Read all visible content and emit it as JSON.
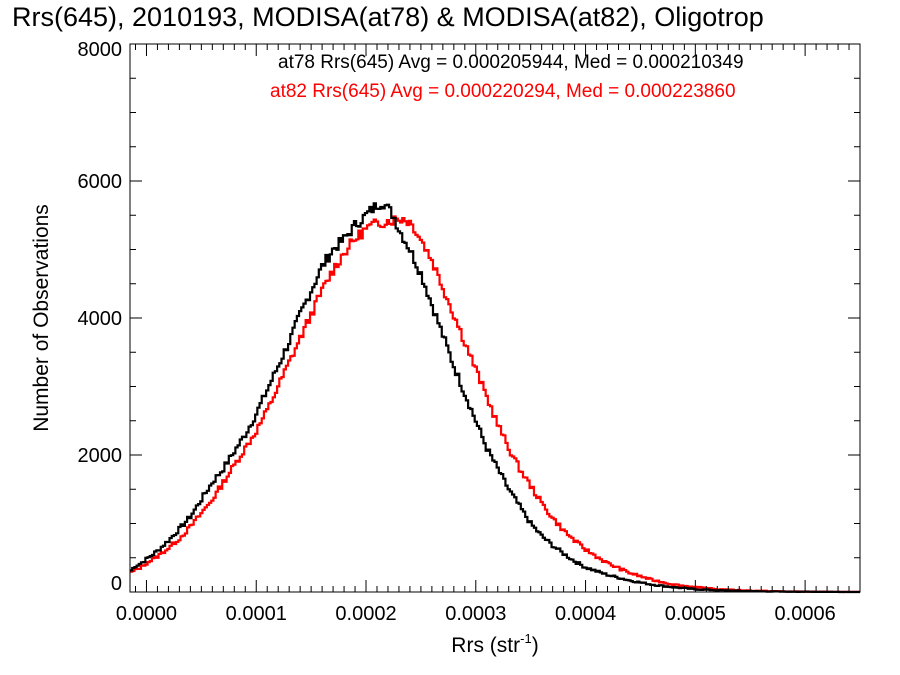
{
  "chart_data": {
    "type": "histogram",
    "title": "Rrs(645), 2010193, MODISA(at78) & MODISA(at82), Oligotrop",
    "xlabel": "Rrs (str",
    "xlabel_sup": "-1",
    "xlabel_close": ")",
    "ylabel": "Number of Observations",
    "xlim": [
      -1.5e-05,
      0.00065
    ],
    "ylim": [
      0,
      8000
    ],
    "xticks": [
      0.0,
      0.0001,
      0.0002,
      0.0003,
      0.0004,
      0.0005,
      0.0006
    ],
    "xtick_labels": [
      "0.0000",
      "0.0001",
      "0.0002",
      "0.0003",
      "0.0004",
      "0.0005",
      "0.0006"
    ],
    "yticks": [
      0,
      2000,
      4000,
      6000,
      8000
    ],
    "ytick_labels": [
      "0",
      "2000",
      "4000",
      "6000",
      "8000"
    ],
    "bin_width": 2e-06,
    "grid": false,
    "annotations": [
      {
        "text": "at78 Rrs(645) Avg = 0.000205944, Med = 0.000210349",
        "color": "#000000"
      },
      {
        "text": "at82 Rrs(645) Avg = 0.000220294, Med = 0.000223860",
        "color": "#ff0000"
      }
    ],
    "series": [
      {
        "color": "#000000",
        "x": [
          -1.5e-05,
          -1e-05,
          -5e-06,
          0.0,
          1e-05,
          2e-05,
          3e-05,
          4e-05,
          5e-05,
          6e-05,
          7e-05,
          8e-05,
          9e-05,
          0.0001,
          0.00011,
          0.00012,
          0.00013,
          0.00014,
          0.00015,
          0.00016,
          0.00017,
          0.00018,
          0.00019,
          0.0002,
          0.00021,
          0.000215,
          0.00022,
          0.000225,
          0.00023,
          0.00024,
          0.00025,
          0.00026,
          0.00027,
          0.00028,
          0.00029,
          0.0003,
          0.00031,
          0.00032,
          0.00033,
          0.00034,
          0.00035,
          0.00036,
          0.00037,
          0.00038,
          0.00039,
          0.0004,
          0.00042,
          0.00044,
          0.00046,
          0.00048,
          0.0005,
          0.00052,
          0.00055,
          0.00058,
          0.00062,
          0.00065
        ],
        "y": [
          300,
          380,
          420,
          480,
          600,
          750,
          920,
          1100,
          1350,
          1600,
          1800,
          2050,
          2300,
          2600,
          2950,
          3300,
          3650,
          4050,
          4400,
          4750,
          5000,
          5150,
          5350,
          5500,
          5650,
          5700,
          5600,
          5500,
          5300,
          5000,
          4650,
          4200,
          3750,
          3300,
          2900,
          2500,
          2100,
          1800,
          1500,
          1250,
          1000,
          820,
          680,
          560,
          450,
          360,
          250,
          170,
          110,
          70,
          40,
          25,
          12,
          5,
          2,
          0
        ]
      },
      {
        "color": "#ff0000",
        "x": [
          -1.5e-05,
          -1e-05,
          -5e-06,
          0.0,
          1e-05,
          2e-05,
          3e-05,
          4e-05,
          5e-05,
          6e-05,
          7e-05,
          8e-05,
          9e-05,
          0.0001,
          0.00011,
          0.00012,
          0.00013,
          0.00014,
          0.00015,
          0.00016,
          0.00017,
          0.00018,
          0.00019,
          0.0002,
          0.00021,
          0.00022,
          0.00023,
          0.000235,
          0.00024,
          0.000245,
          0.00025,
          0.00026,
          0.00027,
          0.00028,
          0.00029,
          0.0003,
          0.00031,
          0.00032,
          0.00033,
          0.00034,
          0.00035,
          0.00036,
          0.00037,
          0.00038,
          0.00039,
          0.0004,
          0.00042,
          0.00044,
          0.00046,
          0.00048,
          0.0005,
          0.00052,
          0.00055,
          0.00058,
          0.00062,
          0.00065
        ],
        "y": [
          280,
          320,
          360,
          420,
          520,
          640,
          780,
          950,
          1150,
          1350,
          1600,
          1850,
          2100,
          2350,
          2650,
          3000,
          3350,
          3700,
          4050,
          4400,
          4700,
          4950,
          5150,
          5300,
          5380,
          5420,
          5450,
          5450,
          5400,
          5300,
          5150,
          4850,
          4450,
          4050,
          3650,
          3250,
          2850,
          2450,
          2100,
          1800,
          1550,
          1300,
          1080,
          900,
          750,
          620,
          420,
          280,
          180,
          110,
          70,
          40,
          20,
          8,
          3,
          0
        ]
      }
    ]
  }
}
